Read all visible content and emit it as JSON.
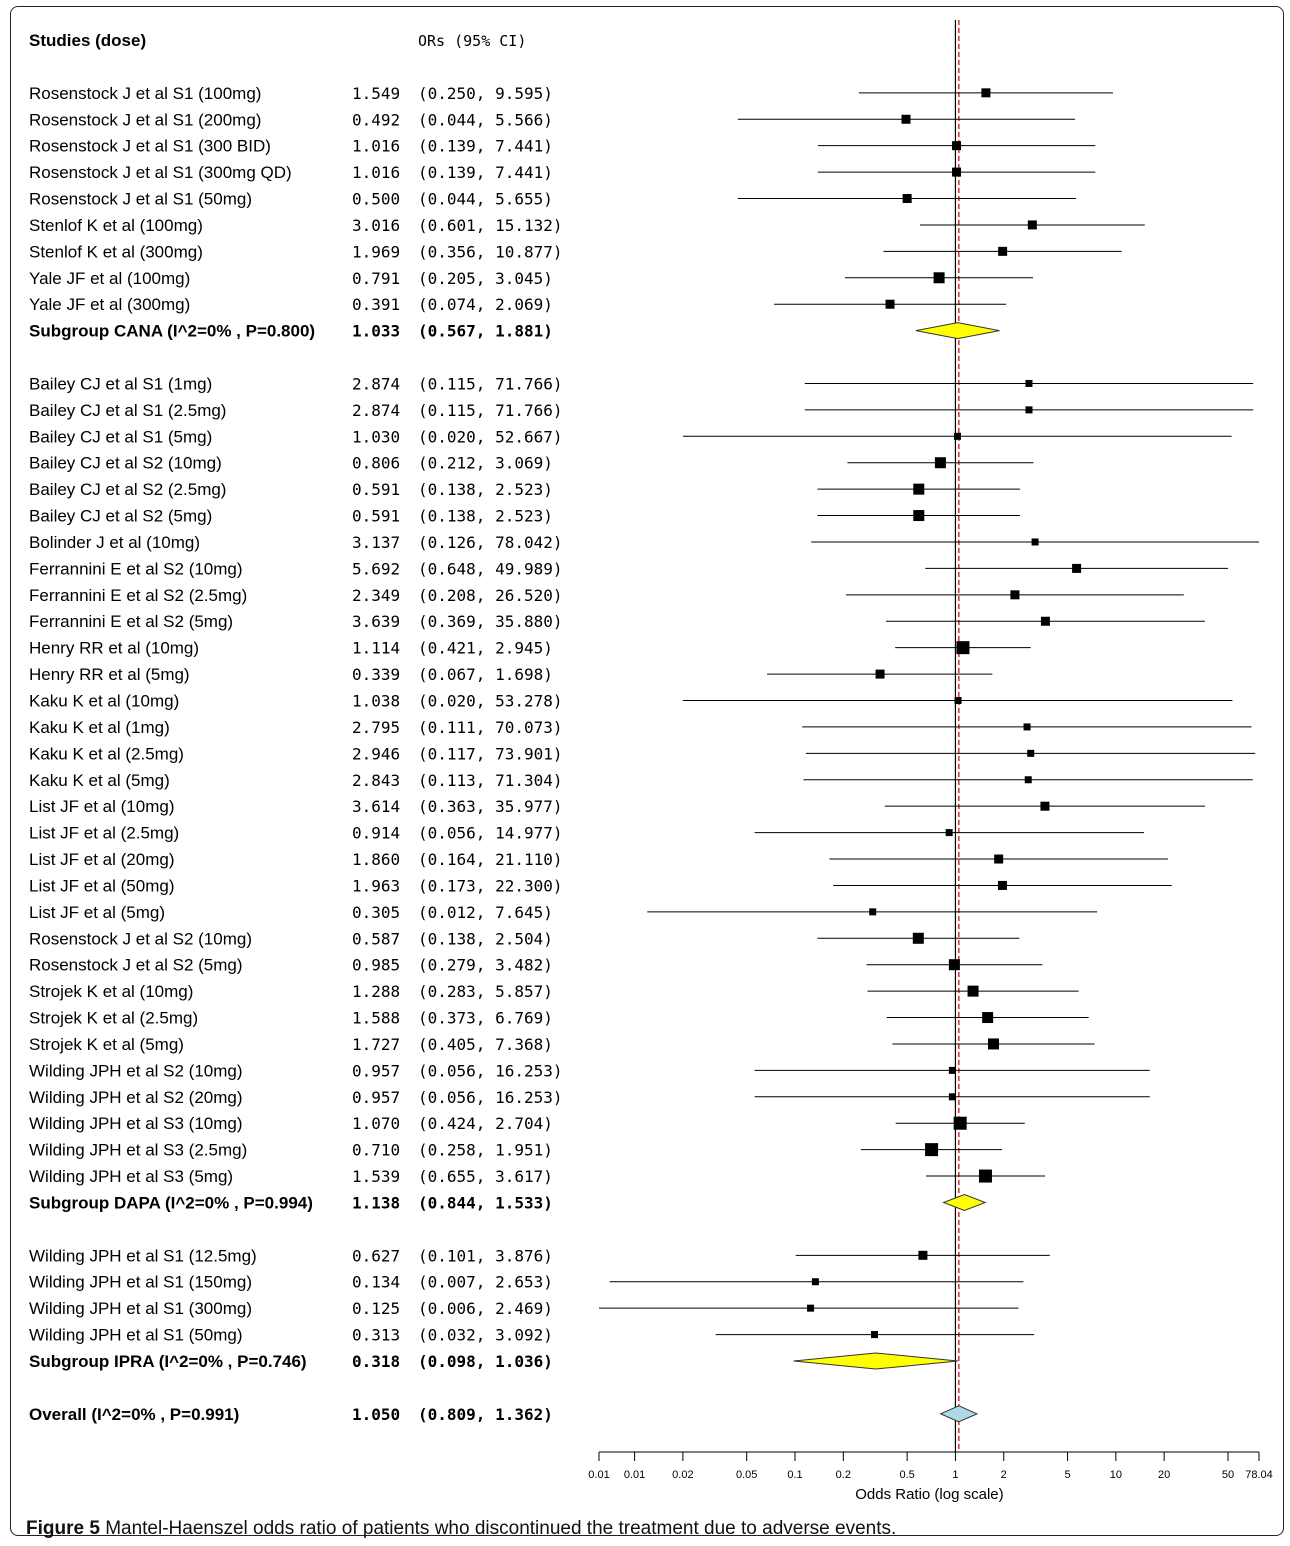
{
  "figure": {
    "caption_label": "Figure 5",
    "caption_text": "Mantel-Haenszel odds ratio of patients who discontinued the treatment due to adverse events."
  },
  "chart_data": {
    "type": "forest",
    "header_left": "Studies (dose)",
    "header_right": "ORs (95% CI)",
    "xlabel": "Odds Ratio (log scale)",
    "x_scale": "log",
    "xlim": [
      0.006,
      78.04
    ],
    "x_ticks": [
      {
        "value": 0.006,
        "label": "0.01"
      },
      {
        "value": 0.01,
        "label": "0.01"
      },
      {
        "value": 0.02,
        "label": "0.02"
      },
      {
        "value": 0.05,
        "label": "0.05"
      },
      {
        "value": 0.1,
        "label": "0.1"
      },
      {
        "value": 0.2,
        "label": "0.2"
      },
      {
        "value": 0.5,
        "label": "0.5"
      },
      {
        "value": 1,
        "label": "1"
      },
      {
        "value": 2,
        "label": "2"
      },
      {
        "value": 5,
        "label": "5"
      },
      {
        "value": 10,
        "label": "10"
      },
      {
        "value": 20,
        "label": "20"
      },
      {
        "value": 50,
        "label": "50"
      },
      {
        "value": 78.04,
        "label": "78.04"
      }
    ],
    "reference_line": 1,
    "overall_line": 1.05,
    "colors": {
      "subgroup_diamond": "#ffff00",
      "overall_diamond": "#add8e6",
      "overall_line": "#e02020"
    },
    "rows": [
      {
        "kind": "header"
      },
      {
        "kind": "blank"
      },
      {
        "kind": "study",
        "label": "Rosenstock J et al S1 (100mg)",
        "or": 1.549,
        "lo": 0.25,
        "hi": 9.595,
        "or_text": "1.549",
        "ci_text": "(0.250,  9.595)",
        "weight": 2
      },
      {
        "kind": "study",
        "label": "Rosenstock J et al S1 (200mg)",
        "or": 0.492,
        "lo": 0.044,
        "hi": 5.566,
        "or_text": "0.492",
        "ci_text": "(0.044,  5.566)",
        "weight": 2
      },
      {
        "kind": "study",
        "label": "Rosenstock J et al S1 (300 BID)",
        "or": 1.016,
        "lo": 0.139,
        "hi": 7.441,
        "or_text": "1.016",
        "ci_text": "(0.139,  7.441)",
        "weight": 2
      },
      {
        "kind": "study",
        "label": "Rosenstock J et al S1 (300mg QD)",
        "or": 1.016,
        "lo": 0.139,
        "hi": 7.441,
        "or_text": "1.016",
        "ci_text": "(0.139,  7.441)",
        "weight": 2
      },
      {
        "kind": "study",
        "label": "Rosenstock J et al S1 (50mg)",
        "or": 0.5,
        "lo": 0.044,
        "hi": 5.655,
        "or_text": "0.500",
        "ci_text": "(0.044,  5.655)",
        "weight": 2
      },
      {
        "kind": "study",
        "label": "Stenlof K et al (100mg)",
        "or": 3.016,
        "lo": 0.601,
        "hi": 15.132,
        "or_text": "3.016",
        "ci_text": "(0.601, 15.132)",
        "weight": 2
      },
      {
        "kind": "study",
        "label": "Stenlof K et al (300mg)",
        "or": 1.969,
        "lo": 0.356,
        "hi": 10.877,
        "or_text": "1.969",
        "ci_text": "(0.356, 10.877)",
        "weight": 2
      },
      {
        "kind": "study",
        "label": "Yale JF et al (100mg)",
        "or": 0.791,
        "lo": 0.205,
        "hi": 3.045,
        "or_text": "0.791",
        "ci_text": "(0.205,  3.045)",
        "weight": 3
      },
      {
        "kind": "study",
        "label": "Yale JF et al (300mg)",
        "or": 0.391,
        "lo": 0.074,
        "hi": 2.069,
        "or_text": "0.391",
        "ci_text": "(0.074,  2.069)",
        "weight": 2
      },
      {
        "kind": "subgroup",
        "label": "Subgroup CANA (I^2=0% , P=0.800)",
        "or": 1.033,
        "lo": 0.567,
        "hi": 1.881,
        "or_text": "1.033",
        "ci_text": "(0.567,  1.881)"
      },
      {
        "kind": "blank"
      },
      {
        "kind": "study",
        "label": "Bailey CJ et al S1 (1mg)",
        "or": 2.874,
        "lo": 0.115,
        "hi": 71.766,
        "or_text": "2.874",
        "ci_text": "(0.115, 71.766)",
        "weight": 1
      },
      {
        "kind": "study",
        "label": "Bailey CJ et al S1 (2.5mg)",
        "or": 2.874,
        "lo": 0.115,
        "hi": 71.766,
        "or_text": "2.874",
        "ci_text": "(0.115, 71.766)",
        "weight": 1
      },
      {
        "kind": "study",
        "label": "Bailey CJ et al S1 (5mg)",
        "or": 1.03,
        "lo": 0.02,
        "hi": 52.667,
        "or_text": "1.030",
        "ci_text": "(0.020, 52.667)",
        "weight": 1
      },
      {
        "kind": "study",
        "label": "Bailey CJ et al S2 (10mg)",
        "or": 0.806,
        "lo": 0.212,
        "hi": 3.069,
        "or_text": "0.806",
        "ci_text": "(0.212,  3.069)",
        "weight": 3
      },
      {
        "kind": "study",
        "label": "Bailey CJ et al S2 (2.5mg)",
        "or": 0.591,
        "lo": 0.138,
        "hi": 2.523,
        "or_text": "0.591",
        "ci_text": "(0.138,  2.523)",
        "weight": 3
      },
      {
        "kind": "study",
        "label": "Bailey CJ et al S2 (5mg)",
        "or": 0.591,
        "lo": 0.138,
        "hi": 2.523,
        "or_text": "0.591",
        "ci_text": "(0.138,  2.523)",
        "weight": 3
      },
      {
        "kind": "study",
        "label": "Bolinder J et al (10mg)",
        "or": 3.137,
        "lo": 0.126,
        "hi": 78.042,
        "or_text": "3.137",
        "ci_text": "(0.126, 78.042)",
        "weight": 1
      },
      {
        "kind": "study",
        "label": "Ferrannini E et al S2 (10mg)",
        "or": 5.692,
        "lo": 0.648,
        "hi": 49.989,
        "or_text": "5.692",
        "ci_text": "(0.648, 49.989)",
        "weight": 2
      },
      {
        "kind": "study",
        "label": "Ferrannini E et al S2 (2.5mg)",
        "or": 2.349,
        "lo": 0.208,
        "hi": 26.52,
        "or_text": "2.349",
        "ci_text": "(0.208, 26.520)",
        "weight": 2
      },
      {
        "kind": "study",
        "label": "Ferrannini E et al S2 (5mg)",
        "or": 3.639,
        "lo": 0.369,
        "hi": 35.88,
        "or_text": "3.639",
        "ci_text": "(0.369, 35.880)",
        "weight": 2
      },
      {
        "kind": "study",
        "label": "Henry RR et al (10mg)",
        "or": 1.114,
        "lo": 0.421,
        "hi": 2.945,
        "or_text": "1.114",
        "ci_text": "(0.421,  2.945)",
        "weight": 4
      },
      {
        "kind": "study",
        "label": "Henry RR et al (5mg)",
        "or": 0.339,
        "lo": 0.067,
        "hi": 1.698,
        "or_text": "0.339",
        "ci_text": "(0.067,  1.698)",
        "weight": 2
      },
      {
        "kind": "study",
        "label": "Kaku K et al (10mg)",
        "or": 1.038,
        "lo": 0.02,
        "hi": 53.278,
        "or_text": "1.038",
        "ci_text": "(0.020, 53.278)",
        "weight": 1
      },
      {
        "kind": "study",
        "label": "Kaku K et al (1mg)",
        "or": 2.795,
        "lo": 0.111,
        "hi": 70.073,
        "or_text": "2.795",
        "ci_text": "(0.111, 70.073)",
        "weight": 1
      },
      {
        "kind": "study",
        "label": "Kaku K et al (2.5mg)",
        "or": 2.946,
        "lo": 0.117,
        "hi": 73.901,
        "or_text": "2.946",
        "ci_text": "(0.117, 73.901)",
        "weight": 1
      },
      {
        "kind": "study",
        "label": "Kaku K et al (5mg)",
        "or": 2.843,
        "lo": 0.113,
        "hi": 71.304,
        "or_text": "2.843",
        "ci_text": "(0.113, 71.304)",
        "weight": 1
      },
      {
        "kind": "study",
        "label": "List JF et al (10mg)",
        "or": 3.614,
        "lo": 0.363,
        "hi": 35.977,
        "or_text": "3.614",
        "ci_text": "(0.363, 35.977)",
        "weight": 2
      },
      {
        "kind": "study",
        "label": "List JF et al (2.5mg)",
        "or": 0.914,
        "lo": 0.056,
        "hi": 14.977,
        "or_text": "0.914",
        "ci_text": "(0.056, 14.977)",
        "weight": 1
      },
      {
        "kind": "study",
        "label": "List JF et al (20mg)",
        "or": 1.86,
        "lo": 0.164,
        "hi": 21.11,
        "or_text": "1.860",
        "ci_text": "(0.164, 21.110)",
        "weight": 2
      },
      {
        "kind": "study",
        "label": "List JF et al (50mg)",
        "or": 1.963,
        "lo": 0.173,
        "hi": 22.3,
        "or_text": "1.963",
        "ci_text": "(0.173, 22.300)",
        "weight": 2
      },
      {
        "kind": "study",
        "label": "List JF et al (5mg)",
        "or": 0.305,
        "lo": 0.012,
        "hi": 7.645,
        "or_text": "0.305",
        "ci_text": "(0.012,  7.645)",
        "weight": 1
      },
      {
        "kind": "study",
        "label": "Rosenstock J et al S2 (10mg)",
        "or": 0.587,
        "lo": 0.138,
        "hi": 2.504,
        "or_text": "0.587",
        "ci_text": "(0.138,  2.504)",
        "weight": 3
      },
      {
        "kind": "study",
        "label": "Rosenstock J et al S2 (5mg)",
        "or": 0.985,
        "lo": 0.279,
        "hi": 3.482,
        "or_text": "0.985",
        "ci_text": "(0.279,  3.482)",
        "weight": 3
      },
      {
        "kind": "study",
        "label": "Strojek K et al (10mg)",
        "or": 1.288,
        "lo": 0.283,
        "hi": 5.857,
        "or_text": "1.288",
        "ci_text": "(0.283,  5.857)",
        "weight": 3
      },
      {
        "kind": "study",
        "label": "Strojek K et al (2.5mg)",
        "or": 1.588,
        "lo": 0.373,
        "hi": 6.769,
        "or_text": "1.588",
        "ci_text": "(0.373,  6.769)",
        "weight": 3
      },
      {
        "kind": "study",
        "label": "Strojek K et al (5mg)",
        "or": 1.727,
        "lo": 0.405,
        "hi": 7.368,
        "or_text": "1.727",
        "ci_text": "(0.405,  7.368)",
        "weight": 3
      },
      {
        "kind": "study",
        "label": "Wilding JPH et al S2 (10mg)",
        "or": 0.957,
        "lo": 0.056,
        "hi": 16.253,
        "or_text": "0.957",
        "ci_text": "(0.056, 16.253)",
        "weight": 1
      },
      {
        "kind": "study",
        "label": "Wilding JPH et al S2 (20mg)",
        "or": 0.957,
        "lo": 0.056,
        "hi": 16.253,
        "or_text": "0.957",
        "ci_text": "(0.056, 16.253)",
        "weight": 1
      },
      {
        "kind": "study",
        "label": "Wilding JPH et al S3 (10mg)",
        "or": 1.07,
        "lo": 0.424,
        "hi": 2.704,
        "or_text": "1.070",
        "ci_text": "(0.424,  2.704)",
        "weight": 4
      },
      {
        "kind": "study",
        "label": "Wilding JPH et al S3 (2.5mg)",
        "or": 0.71,
        "lo": 0.258,
        "hi": 1.951,
        "or_text": "0.710",
        "ci_text": "(0.258,  1.951)",
        "weight": 4
      },
      {
        "kind": "study",
        "label": "Wilding JPH et al S3 (5mg)",
        "or": 1.539,
        "lo": 0.655,
        "hi": 3.617,
        "or_text": "1.539",
        "ci_text": "(0.655,  3.617)",
        "weight": 4
      },
      {
        "kind": "subgroup",
        "label": "Subgroup DAPA (I^2=0% , P=0.994)",
        "or": 1.138,
        "lo": 0.844,
        "hi": 1.533,
        "or_text": "1.138",
        "ci_text": "(0.844,  1.533)"
      },
      {
        "kind": "blank"
      },
      {
        "kind": "study",
        "label": "Wilding JPH et al S1 (12.5mg)",
        "or": 0.627,
        "lo": 0.101,
        "hi": 3.876,
        "or_text": "0.627",
        "ci_text": "(0.101,  3.876)",
        "weight": 2
      },
      {
        "kind": "study",
        "label": "Wilding JPH et al S1 (150mg)",
        "or": 0.134,
        "lo": 0.007,
        "hi": 2.653,
        "or_text": "0.134",
        "ci_text": "(0.007,  2.653)",
        "weight": 1
      },
      {
        "kind": "study",
        "label": "Wilding JPH et al S1 (300mg)",
        "or": 0.125,
        "lo": 0.006,
        "hi": 2.469,
        "or_text": "0.125",
        "ci_text": "(0.006,  2.469)",
        "weight": 1
      },
      {
        "kind": "study",
        "label": "Wilding JPH et al S1 (50mg)",
        "or": 0.313,
        "lo": 0.032,
        "hi": 3.092,
        "or_text": "0.313",
        "ci_text": "(0.032,  3.092)",
        "weight": 1
      },
      {
        "kind": "subgroup",
        "label": "Subgroup IPRA (I^2=0% , P=0.746)",
        "or": 0.318,
        "lo": 0.098,
        "hi": 1.036,
        "or_text": "0.318",
        "ci_text": "(0.098,  1.036)"
      },
      {
        "kind": "blank"
      },
      {
        "kind": "overall",
        "label": "Overall (I^2=0% , P=0.991)",
        "or": 1.05,
        "lo": 0.809,
        "hi": 1.362,
        "or_text": "1.050",
        "ci_text": "(0.809,  1.362)"
      }
    ]
  }
}
